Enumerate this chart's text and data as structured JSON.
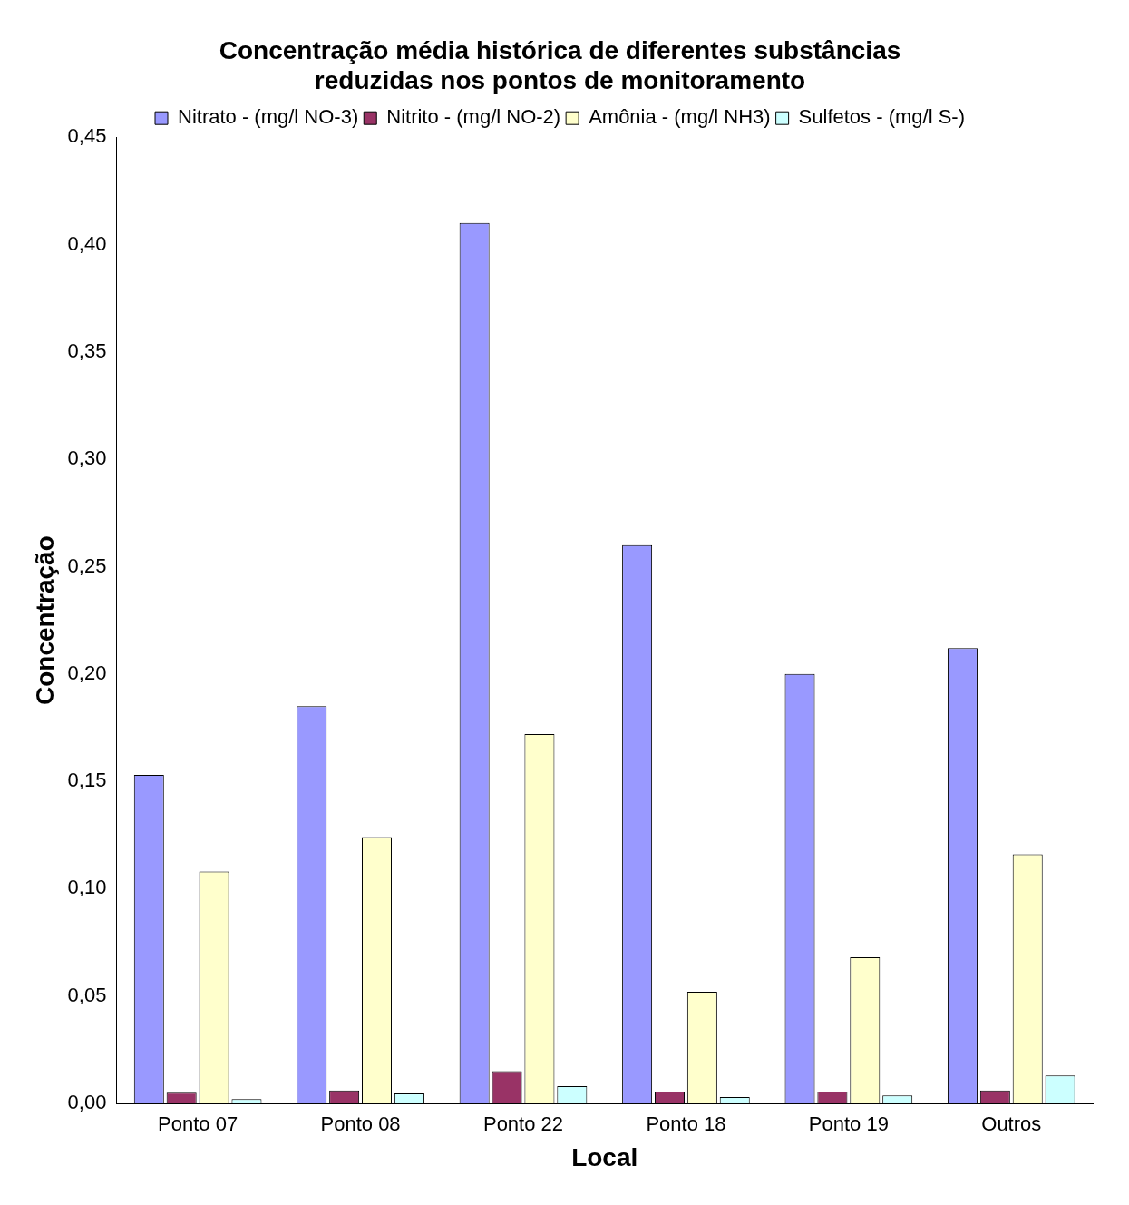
{
  "chart_data": {
    "type": "bar",
    "title": [
      "Concentração média histórica de diferentes substâncias",
      "reduzidas nos pontos de monitoramento"
    ],
    "xlabel": "Local",
    "ylabel": "Concentração",
    "categories": [
      "Ponto 07",
      "Ponto 08",
      "Ponto 22",
      "Ponto 18",
      "Ponto 19",
      "Outros"
    ],
    "series": [
      {
        "name": "Nitrato - (mg/l NO-3)",
        "color": "#9999ff",
        "values": [
          0.153,
          0.185,
          0.41,
          0.26,
          0.2,
          0.212
        ]
      },
      {
        "name": "Nitrito - (mg/l NO-2)",
        "color": "#993366",
        "values": [
          0.005,
          0.006,
          0.015,
          0.0055,
          0.0055,
          0.006
        ]
      },
      {
        "name": "Amônia - (mg/l NH3)",
        "color": "#ffffcc",
        "values": [
          0.108,
          0.124,
          0.172,
          0.052,
          0.068,
          0.116
        ]
      },
      {
        "name": "Sulfetos - (mg/l S-)",
        "color": "#ccffff",
        "values": [
          0.002,
          0.0046,
          0.008,
          0.003,
          0.0037,
          0.013
        ]
      }
    ],
    "ylim": [
      0,
      0.45
    ],
    "yticks": [
      {
        "value": 0,
        "label": "0,00"
      },
      {
        "value": 0.05,
        "label": "0,05"
      },
      {
        "value": 0.1,
        "label": "0,10"
      },
      {
        "value": 0.15,
        "label": "0,15"
      },
      {
        "value": 0.2,
        "label": "0,20"
      },
      {
        "value": 0.25,
        "label": "0,25"
      },
      {
        "value": 0.3,
        "label": "0,30"
      },
      {
        "value": 0.35,
        "label": "0,35"
      },
      {
        "value": 0.4,
        "label": "0,40"
      },
      {
        "value": 0.45,
        "label": "0,45"
      }
    ],
    "grid": false,
    "legend": "top"
  }
}
